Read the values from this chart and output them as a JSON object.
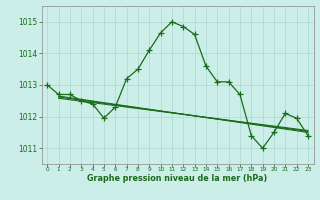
{
  "title": "Graphe pression niveau de la mer (hPa)",
  "bg_color": "#cceee8",
  "grid_color": "#aad8d2",
  "line_color": "#1a6b1a",
  "xlim": [
    -0.5,
    23.5
  ],
  "ylim": [
    1010.5,
    1015.5
  ],
  "yticks": [
    1011,
    1012,
    1013,
    1014,
    1015
  ],
  "xticks": [
    0,
    1,
    2,
    3,
    4,
    5,
    6,
    7,
    8,
    9,
    10,
    11,
    12,
    13,
    14,
    15,
    16,
    17,
    18,
    19,
    20,
    21,
    22,
    23
  ],
  "series1_x": [
    0,
    1,
    2,
    3,
    4,
    5,
    6,
    7,
    8,
    9,
    10,
    11,
    12,
    13,
    14,
    15,
    16,
    17,
    18,
    19,
    20,
    21,
    22,
    23
  ],
  "series1_y": [
    1013.0,
    1012.7,
    1012.7,
    1012.5,
    1012.4,
    1011.95,
    1012.3,
    1013.2,
    1013.5,
    1014.1,
    1014.65,
    1015.0,
    1014.85,
    1014.6,
    1013.6,
    1013.1,
    1013.1,
    1012.7,
    1011.4,
    1011.0,
    1011.5,
    1012.1,
    1011.95,
    1011.4
  ],
  "series2_x": [
    1,
    23
  ],
  "series2_y": [
    1012.65,
    1011.5
  ],
  "series3_x": [
    1,
    23
  ],
  "series3_y": [
    1012.62,
    1011.53
  ],
  "series4_x": [
    1,
    23
  ],
  "series4_y": [
    1012.58,
    1011.56
  ]
}
